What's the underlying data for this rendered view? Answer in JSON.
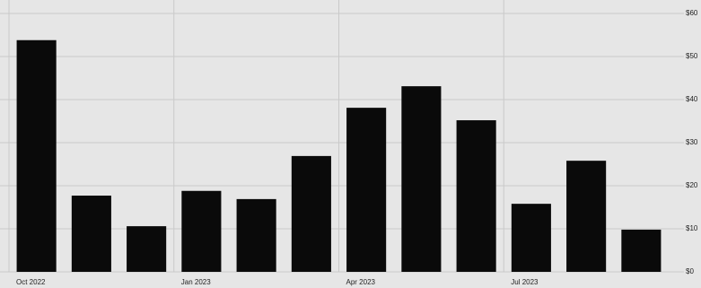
{
  "chart_data": {
    "type": "bar",
    "categories": [
      "Oct 2022",
      null,
      null,
      "Jan 2023",
      null,
      null,
      "Apr 2023",
      null,
      null,
      "Jul 2023",
      null,
      null
    ],
    "values": [
      53.8,
      17.7,
      10.6,
      18.8,
      16.9,
      26.9,
      38.1,
      43.1,
      35.2,
      15.8,
      25.8,
      9.8
    ],
    "color": "#0a0a0a",
    "ylim": [
      0,
      60
    ],
    "yticks": [
      {
        "value": 0,
        "label": "$0"
      },
      {
        "value": 10,
        "label": "$10"
      },
      {
        "value": 20,
        "label": "$20"
      },
      {
        "value": 30,
        "label": "$30"
      },
      {
        "value": 40,
        "label": "$40"
      },
      {
        "value": 50,
        "label": "$50"
      },
      {
        "value": 60,
        "label": "$60"
      }
    ],
    "grid": true
  }
}
